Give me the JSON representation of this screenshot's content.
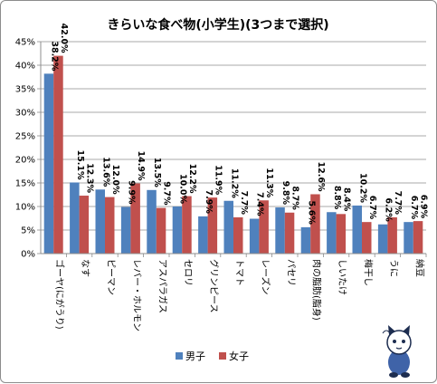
{
  "chart_data": {
    "type": "bar",
    "title": "きらいな食べ物(小学生)(3つまで選択)",
    "categories": [
      "ゴーヤ(にがうり)",
      "なす",
      "ピーマン",
      "レバー・ホルモン",
      "アスパラガス",
      "セロリ",
      "グリンピース",
      "トマト",
      "レーズン",
      "パセリ",
      "肉の脂肪(脂身)",
      "しいたけ",
      "梅干し",
      "うに",
      "納豆"
    ],
    "series": [
      {
        "name": "男子",
        "color": "#4f81bd",
        "values": [
          38.2,
          15.1,
          13.6,
          9.9,
          13.5,
          10.0,
          7.9,
          11.2,
          7.4,
          9.8,
          5.6,
          8.8,
          10.2,
          6.2,
          6.7
        ],
        "labels": [
          "38.2%",
          "15.1%",
          "13.6%",
          "9.9%",
          "13.5%",
          "10.0%",
          "7.9%",
          "11.2%",
          "7.4%",
          "9.8%",
          "5.6%",
          "8.8%",
          "10.2%",
          "6.2%",
          "6.7%"
        ]
      },
      {
        "name": "女子",
        "color": "#c0504d",
        "values": [
          42.0,
          12.3,
          12.0,
          14.9,
          9.7,
          12.2,
          11.9,
          7.7,
          11.3,
          8.7,
          12.6,
          8.4,
          6.7,
          7.7,
          6.9
        ],
        "labels": [
          "42.0%",
          "12.3%",
          "12.0%",
          "14.9%",
          "9.7%",
          "12.2%",
          "11.9%",
          "7.7%",
          "11.3%",
          "8.7%",
          "12.6%",
          "8.4%",
          "6.7%",
          "7.7%",
          "6.9%"
        ]
      }
    ],
    "ylim": [
      0,
      45
    ],
    "yticks": [
      0,
      5,
      10,
      15,
      20,
      25,
      30,
      35,
      40,
      45
    ],
    "ytick_labels": [
      "0%",
      "5%",
      "10%",
      "15%",
      "20%",
      "25%",
      "30%",
      "35%",
      "40%",
      "45%"
    ],
    "grid": true,
    "legend": "bottom",
    "mascot_icon": "cat-mascot-icon"
  }
}
